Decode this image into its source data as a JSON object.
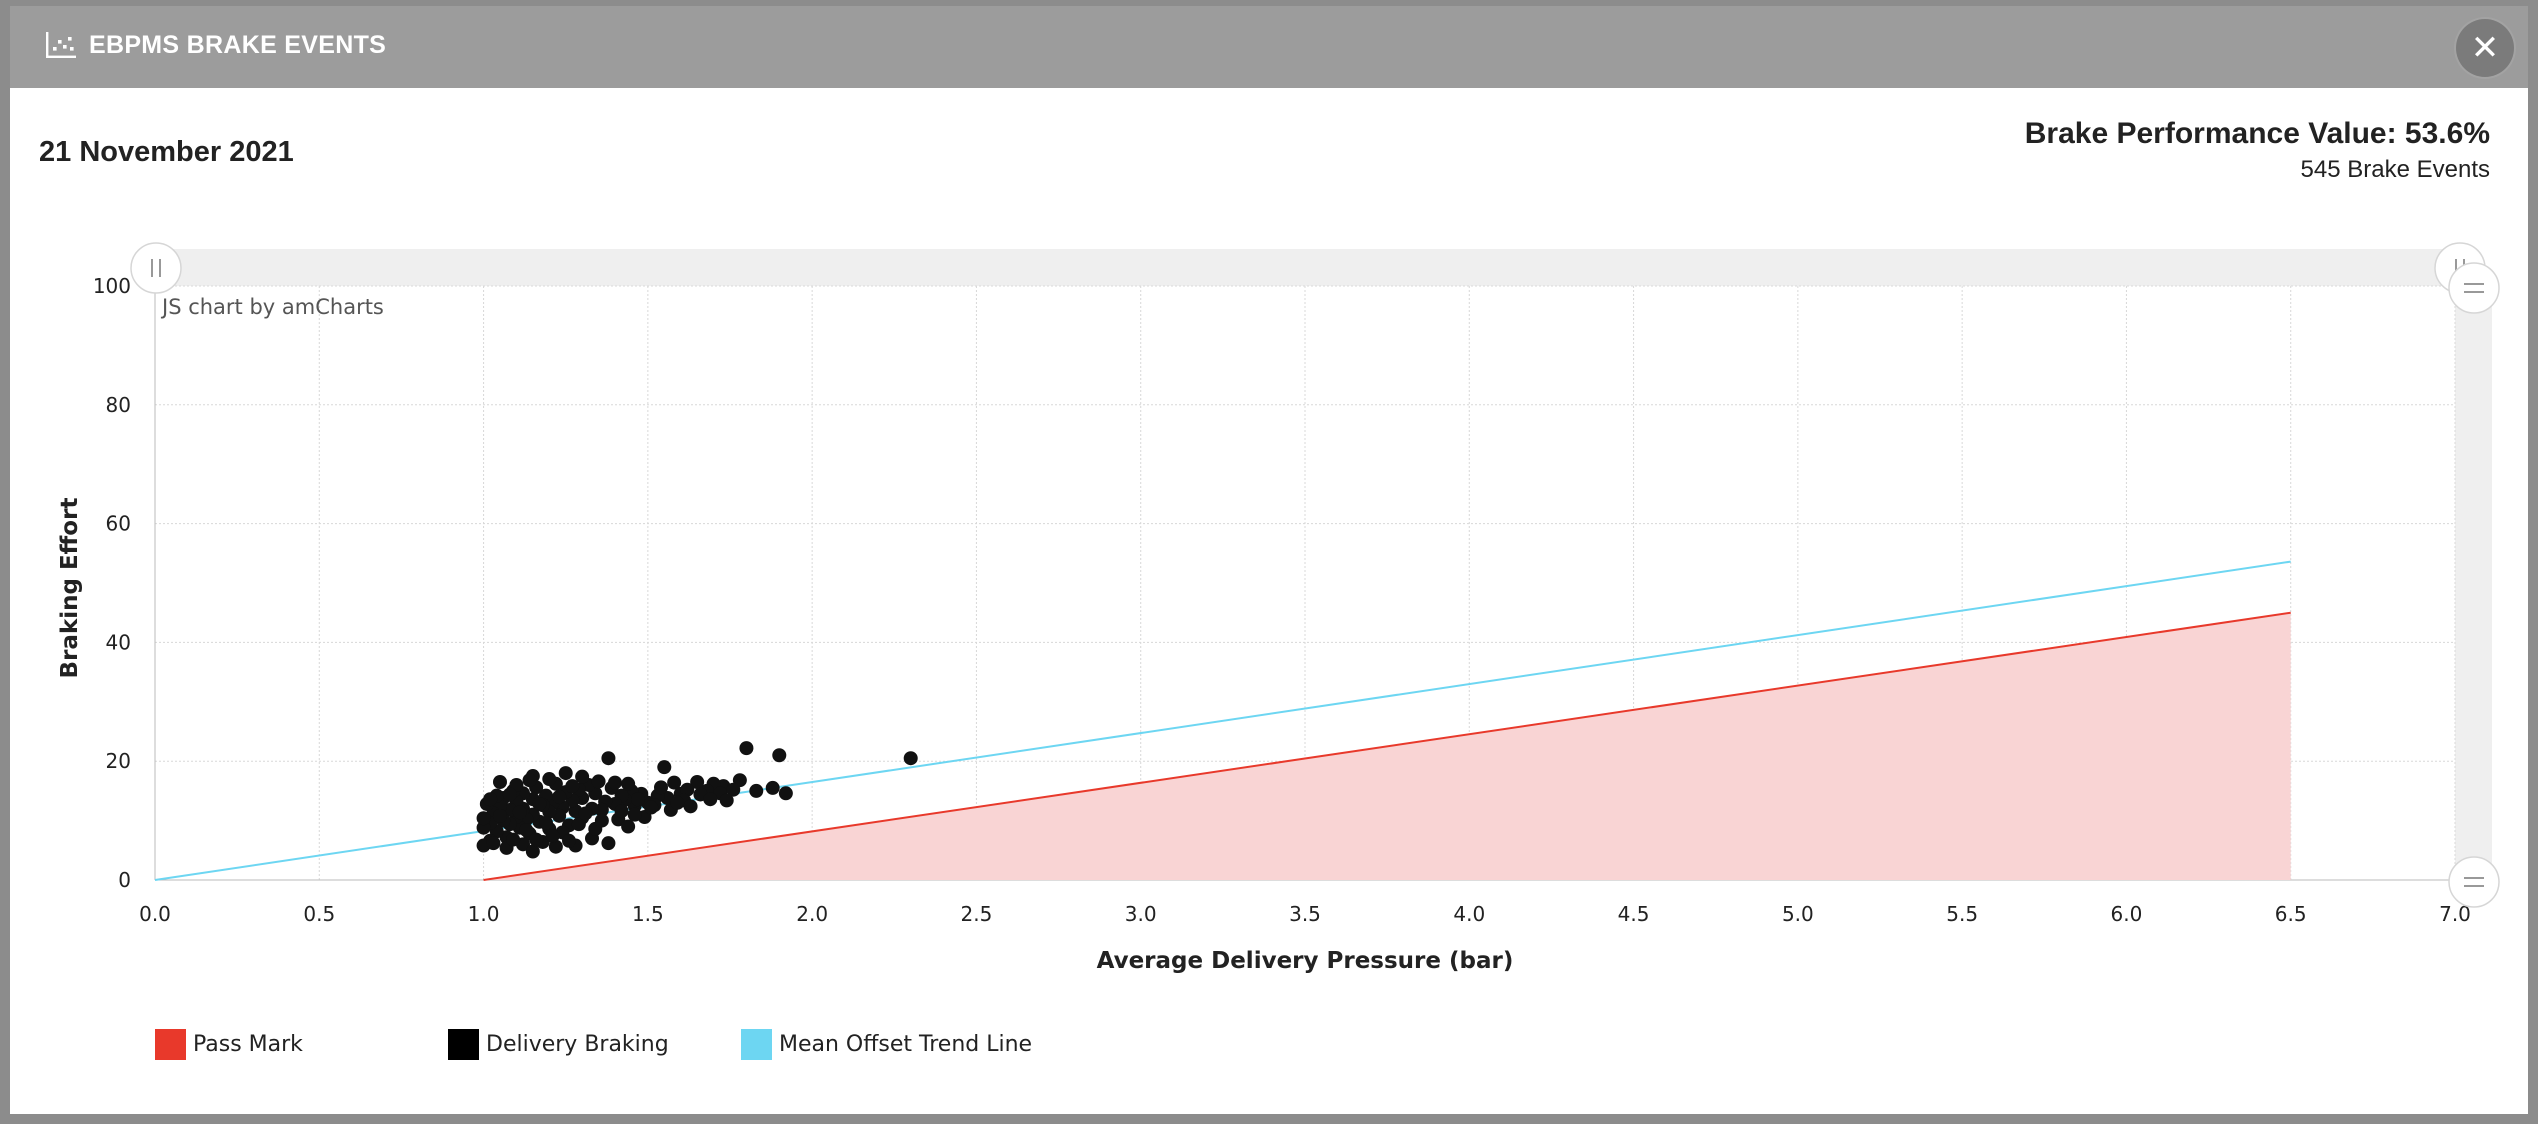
{
  "header": {
    "title": "EBPMS BRAKE EVENTS",
    "icon": "scatter-chart-icon",
    "close_icon": "close-icon",
    "close_symbol": "✕"
  },
  "summary": {
    "date": "21 November 2021",
    "performance_label": "Brake Performance Value: 53.6%",
    "event_count_label": "545 Brake Events"
  },
  "chart_data": {
    "type": "scatter",
    "credit": "JS chart by amCharts",
    "xlabel": "Average Delivery Pressure (bar)",
    "ylabel": "Braking Effort",
    "xlim": [
      0,
      7
    ],
    "ylim": [
      0,
      100
    ],
    "x_ticks": [
      "0.0",
      "0.5",
      "1.0",
      "1.5",
      "2.0",
      "2.5",
      "3.0",
      "3.5",
      "4.0",
      "4.5",
      "5.0",
      "5.5",
      "6.0",
      "6.5",
      "7.0"
    ],
    "y_ticks": [
      "0",
      "20",
      "40",
      "60",
      "80",
      "100"
    ],
    "grid": true,
    "legend_position": "bottom-left",
    "legend": [
      {
        "label": "Pass Mark",
        "color": "#e8392b"
      },
      {
        "label": "Delivery Braking",
        "color": "#000000"
      },
      {
        "label": "Mean Offset Trend Line",
        "color": "#6dd6f2"
      }
    ],
    "series": [
      {
        "type": "area",
        "color": "#e8392b",
        "fill": "#f9d4d4",
        "x": [
          1.0,
          6.5
        ],
        "y": [
          0,
          45
        ]
      },
      {
        "type": "line",
        "color": "#6dd6f2",
        "x": [
          0.0,
          6.5
        ],
        "y": [
          0,
          53.6
        ]
      },
      {
        "type": "scatter",
        "color": "#111111",
        "points": [
          [
            1.05,
            16.5
          ],
          [
            1.15,
            17.5
          ],
          [
            1.25,
            18
          ],
          [
            1.38,
            20.5
          ],
          [
            1.55,
            19
          ],
          [
            1.8,
            22.2
          ],
          [
            1.9,
            21
          ],
          [
            2.3,
            20.5
          ],
          [
            1.92,
            14.6
          ],
          [
            1.88,
            15.5
          ],
          [
            1.83,
            15
          ],
          [
            1.78,
            16.8
          ],
          [
            1.73,
            15.8
          ],
          [
            1.7,
            16.2
          ],
          [
            1.68,
            15
          ],
          [
            1.65,
            16.5
          ],
          [
            1.6,
            14.5
          ],
          [
            1.62,
            15.2
          ],
          [
            1.58,
            16.4
          ],
          [
            1.56,
            13.8
          ],
          [
            1.53,
            14.2
          ],
          [
            1.5,
            13
          ],
          [
            1.48,
            14.5
          ],
          [
            1.46,
            12.5
          ],
          [
            1.45,
            15
          ],
          [
            1.43,
            13.5
          ],
          [
            1.42,
            14.2
          ],
          [
            1.4,
            12.8
          ],
          [
            1.39,
            15.5
          ],
          [
            1.37,
            13.2
          ],
          [
            1.36,
            11.8
          ],
          [
            1.34,
            14.6
          ],
          [
            1.33,
            12
          ],
          [
            1.32,
            16
          ],
          [
            1.3,
            13.8
          ],
          [
            1.3,
            10.5
          ],
          [
            1.29,
            15.2
          ],
          [
            1.28,
            11.6
          ],
          [
            1.27,
            13.4
          ],
          [
            1.26,
            9.2
          ],
          [
            1.25,
            14.8
          ],
          [
            1.24,
            12.2
          ],
          [
            1.23,
            10.8
          ],
          [
            1.22,
            16.2
          ],
          [
            1.21,
            13
          ],
          [
            1.2,
            8.6
          ],
          [
            1.2,
            11.5
          ],
          [
            1.19,
            14.2
          ],
          [
            1.18,
            12.6
          ],
          [
            1.17,
            9.8
          ],
          [
            1.16,
            15.6
          ],
          [
            1.15,
            11
          ],
          [
            1.15,
            13.6
          ],
          [
            1.14,
            7.8
          ],
          [
            1.13,
            10.2
          ],
          [
            1.12,
            14.6
          ],
          [
            1.12,
            12
          ],
          [
            1.11,
            8.8
          ],
          [
            1.1,
            13.2
          ],
          [
            1.1,
            10.6
          ],
          [
            1.09,
            15
          ],
          [
            1.08,
            9.4
          ],
          [
            1.08,
            11.8
          ],
          [
            1.07,
            7.2
          ],
          [
            1.06,
            13.8
          ],
          [
            1.06,
            10
          ],
          [
            1.05,
            12.4
          ],
          [
            1.04,
            8.2
          ],
          [
            1.04,
            14.2
          ],
          [
            1.03,
            11.2
          ],
          [
            1.02,
            9.6
          ],
          [
            1.02,
            6.6
          ],
          [
            1.01,
            12.8
          ],
          [
            1.0,
            8.8
          ],
          [
            1.0,
            5.8
          ],
          [
            1.0,
            10.4
          ],
          [
            1.03,
            6.2
          ],
          [
            1.07,
            5.4
          ],
          [
            1.12,
            6
          ],
          [
            1.15,
            4.8
          ],
          [
            1.18,
            6.4
          ],
          [
            1.22,
            5.6
          ],
          [
            1.28,
            5.8
          ],
          [
            1.33,
            7
          ],
          [
            1.38,
            6.2
          ],
          [
            1.1,
            16
          ],
          [
            1.2,
            17
          ],
          [
            1.3,
            17.4
          ],
          [
            1.35,
            16.6
          ],
          [
            1.4,
            16.4
          ],
          [
            1.44,
            16.2
          ],
          [
            1.47,
            13.6
          ],
          [
            1.52,
            12.6
          ],
          [
            1.57,
            11.8
          ],
          [
            1.61,
            13.4
          ],
          [
            1.66,
            14.4
          ],
          [
            1.72,
            14.6
          ],
          [
            1.76,
            15.2
          ],
          [
            1.24,
            8
          ],
          [
            1.29,
            9.4
          ],
          [
            1.34,
            8.6
          ],
          [
            1.41,
            10.2
          ],
          [
            1.44,
            9
          ],
          [
            1.49,
            10.6
          ],
          [
            1.16,
            6.8
          ],
          [
            1.26,
            6.6
          ],
          [
            1.31,
            11.2
          ],
          [
            1.36,
            10
          ],
          [
            1.11,
            11.4
          ],
          [
            1.19,
            9.6
          ],
          [
            1.23,
            14
          ],
          [
            1.27,
            15.8
          ],
          [
            1.08,
            14.4
          ],
          [
            1.14,
            16.8
          ],
          [
            1.21,
            7.4
          ],
          [
            1.17,
            12.8
          ],
          [
            1.13,
            8.4
          ],
          [
            1.09,
            6.8
          ],
          [
            1.05,
            10.8
          ],
          [
            1.02,
            13.6
          ],
          [
            1.42,
            11.6
          ],
          [
            1.46,
            11
          ],
          [
            1.51,
            12.2
          ],
          [
            1.54,
            15.6
          ],
          [
            1.59,
            13
          ],
          [
            1.63,
            12.4
          ],
          [
            1.69,
            13.6
          ],
          [
            1.74,
            13.4
          ]
        ]
      }
    ]
  }
}
